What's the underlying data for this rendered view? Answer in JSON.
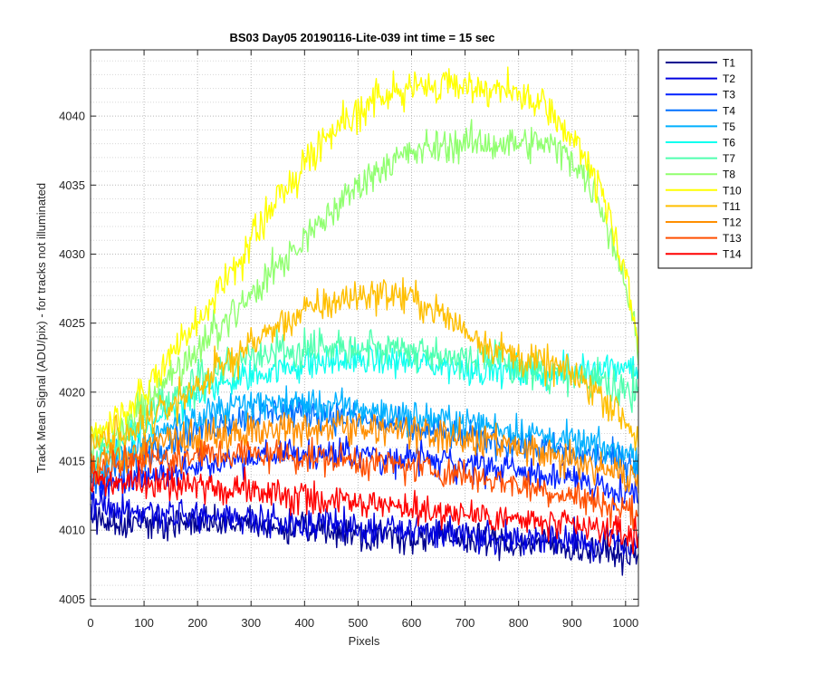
{
  "chart_data": {
    "type": "line",
    "title": "BS03 Day05 20190116-Lite-039 int time = 15 sec",
    "xlabel": "Pixels",
    "ylabel": "Track Mean Signal (ADU/pix) - for tracks not illuminated",
    "xlim": [
      0,
      1024
    ],
    "ylim": [
      4004.5,
      4044.8
    ],
    "x_ticks": [
      0,
      100,
      200,
      300,
      400,
      500,
      600,
      700,
      800,
      900,
      1000
    ],
    "y_ticks": [
      4005,
      4010,
      4015,
      4020,
      4025,
      4030,
      4035,
      4040
    ],
    "y_minor_step": 1,
    "grid": "major and minor (dotted)",
    "legend_position": "outside-right",
    "x": [
      0,
      50,
      100,
      150,
      200,
      250,
      300,
      350,
      400,
      450,
      500,
      550,
      600,
      650,
      700,
      750,
      800,
      850,
      900,
      950,
      1000,
      1024
    ],
    "series": [
      {
        "name": "T1",
        "color": "#00008f",
        "values": [
          4011,
          4010.5,
          4010.5,
          4010.5,
          4010.5,
          4010.5,
          4010.3,
          4010.2,
          4010,
          4010,
          4009.8,
          4009.7,
          4009.5,
          4009.5,
          4009.3,
          4009.2,
          4009,
          4009,
          4008.7,
          4008.5,
          4008.2,
          4008
        ]
      },
      {
        "name": "T2",
        "color": "#0000df",
        "values": [
          4012,
          4011.5,
          4011.3,
          4011.2,
          4011,
          4011,
          4010.8,
          4010.7,
          4010.5,
          4010.4,
          4010.2,
          4010.2,
          4010,
          4009.8,
          4009.7,
          4009.6,
          4009.5,
          4009.4,
          4009.3,
          4009.2,
          4009,
          4008.8
        ]
      },
      {
        "name": "T3",
        "color": "#0020ff",
        "values": [
          4013,
          4013.4,
          4013.7,
          4014.2,
          4014.7,
          4015,
          4015.3,
          4015.5,
          4015.6,
          4015.6,
          4015.5,
          4015.3,
          4015.2,
          4015,
          4014.8,
          4014.5,
          4014.3,
          4014,
          4013.7,
          4013.3,
          4012.8,
          4012.5
        ]
      },
      {
        "name": "T4",
        "color": "#0070ff",
        "values": [
          4013.5,
          4014.5,
          4015.5,
          4016.5,
          4017.3,
          4017.8,
          4018.3,
          4018.6,
          4018.6,
          4018.3,
          4018,
          4017.7,
          4017.4,
          4017.1,
          4016.8,
          4016.5,
          4016.2,
          4015.9,
          4015.6,
          4015.3,
          4015,
          4014.8
        ]
      },
      {
        "name": "T5",
        "color": "#00b0ff",
        "values": [
          4014,
          4015.2,
          4016.5,
          4017.5,
          4018.2,
          4018.7,
          4019,
          4019.2,
          4019.2,
          4019,
          4018.8,
          4018.5,
          4018.2,
          4018,
          4017.8,
          4017.5,
          4017.2,
          4016.8,
          4016.4,
          4016,
          4015.6,
          4015.3
        ]
      },
      {
        "name": "T6",
        "color": "#10ffef",
        "values": [
          4014.5,
          4016,
          4017.5,
          4018.8,
          4019.8,
          4020.6,
          4021.2,
          4021.7,
          4022,
          4022.2,
          4022.3,
          4022.3,
          4022.2,
          4022,
          4021.8,
          4021.6,
          4021.4,
          4021.3,
          4021.5,
          4021.8,
          4022,
          4021.5
        ]
      },
      {
        "name": "T7",
        "color": "#50ffaf",
        "values": [
          4015,
          4016.5,
          4018,
          4019.5,
          4020.8,
          4021.8,
          4022.5,
          4023,
          4023.3,
          4023.4,
          4023.4,
          4023.3,
          4023.1,
          4022.8,
          4022.5,
          4022.2,
          4021.8,
          4021.4,
          4021,
          4020.6,
          4020.2,
          4019.8
        ]
      },
      {
        "name": "T8",
        "color": "#90ff6f",
        "values": [
          4016,
          4017,
          4019,
          4021,
          4023,
          4025,
          4027,
          4029,
          4031,
          4033,
          4035,
          4036.5,
          4037.3,
          4037.8,
          4038,
          4038,
          4038,
          4038,
          4037,
          4034,
          4028,
          4023
        ]
      },
      {
        "name": "T10",
        "color": "#ffff00",
        "values": [
          4017,
          4018,
          4020,
          4022.5,
          4025,
          4028,
          4031,
          4034,
          4036.5,
          4039,
          4040.5,
          4041.5,
          4042,
          4042.2,
          4042.3,
          4042,
          4041.5,
          4040.5,
          4038.5,
          4035,
          4029,
          4023
        ]
      },
      {
        "name": "T11",
        "color": "#ffbf00",
        "values": [
          4016,
          4016.8,
          4017.8,
          4019,
          4020.5,
          4022,
          4023.5,
          4024.8,
          4025.8,
          4026.5,
          4027,
          4027.2,
          4026.8,
          4025.8,
          4024.5,
          4023.3,
          4022.5,
          4022,
          4021.3,
          4020,
          4018,
          4016.5
        ]
      },
      {
        "name": "T12",
        "color": "#ff8f00",
        "values": [
          4015,
          4015.3,
          4015.8,
          4016.2,
          4016.6,
          4017,
          4017.2,
          4017.4,
          4017.5,
          4017.5,
          4017.4,
          4017.3,
          4017.1,
          4016.8,
          4016.5,
          4016.2,
          4015.8,
          4015.4,
          4015,
          4014.5,
          4014,
          4013.5
        ]
      },
      {
        "name": "T13",
        "color": "#ff4f00",
        "values": [
          4014.5,
          4014.7,
          4015,
          4015.2,
          4015.4,
          4015.5,
          4015.5,
          4015.5,
          4015.3,
          4015.2,
          4015,
          4014.8,
          4014.6,
          4014.3,
          4014,
          4013.7,
          4013.3,
          4012.9,
          4012.5,
          4012,
          4011.5,
          4011
        ]
      },
      {
        "name": "T14",
        "color": "#ff0000",
        "values": [
          4013.5,
          4013.5,
          4013.4,
          4013.3,
          4013.2,
          4013,
          4012.8,
          4012.6,
          4012.4,
          4012.2,
          4012,
          4011.8,
          4011.6,
          4011.4,
          4011.2,
          4011,
          4010.7,
          4010.5,
          4010.2,
          4010,
          4009.7,
          4009.5
        ]
      }
    ]
  }
}
